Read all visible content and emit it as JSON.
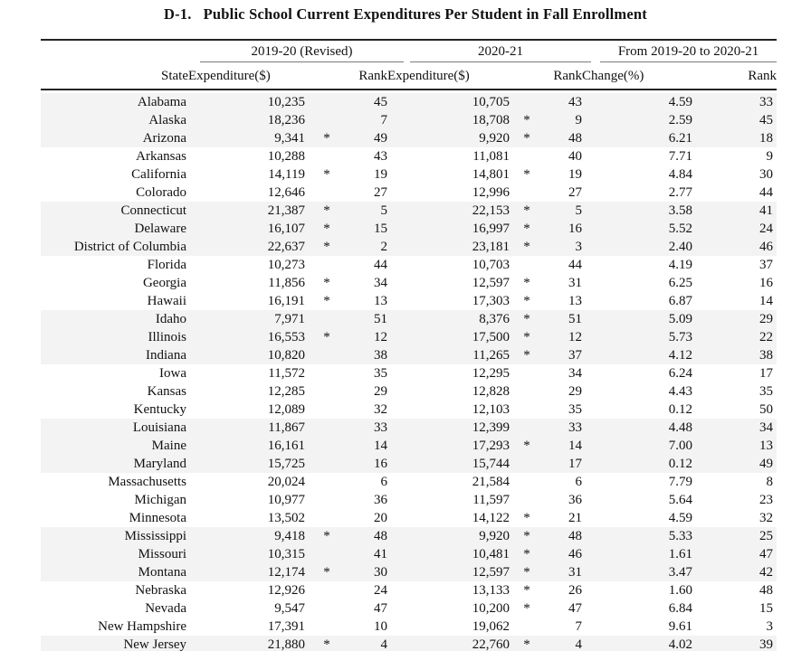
{
  "title": {
    "number": "D-1.",
    "text": "Public School Current Expenditures Per Student in Fall Enrollment"
  },
  "colors": {
    "row_shade": "#f3f3f3",
    "thick_rule": "#232323",
    "group_rule": "#7a7a7a",
    "text": "#111111"
  },
  "table": {
    "col_groups": [
      {
        "label": "2019-20 (Revised)"
      },
      {
        "label": "2020-21"
      },
      {
        "label": "From 2019-20 to 2020-21"
      }
    ],
    "sub_headers": {
      "state": "State",
      "expenditure": "Expenditure($)",
      "rank": "Rank",
      "change": "Change(%)"
    },
    "footnote_marker": "*",
    "rows": [
      {
        "state": "Alabama",
        "exp1": "10,235",
        "ast1": "",
        "rank1": "45",
        "exp2": "10,705",
        "ast2": "",
        "rank2": "43",
        "change": "4.59",
        "rank3": "33",
        "shaded": true
      },
      {
        "state": "Alaska",
        "exp1": "18,236",
        "ast1": "",
        "rank1": "7",
        "exp2": "18,708",
        "ast2": "*",
        "rank2": "9",
        "change": "2.59",
        "rank3": "45",
        "shaded": true
      },
      {
        "state": "Arizona",
        "exp1": "9,341",
        "ast1": "*",
        "rank1": "49",
        "exp2": "9,920",
        "ast2": "*",
        "rank2": "48",
        "change": "6.21",
        "rank3": "18",
        "shaded": true
      },
      {
        "state": "Arkansas",
        "exp1": "10,288",
        "ast1": "",
        "rank1": "43",
        "exp2": "11,081",
        "ast2": "",
        "rank2": "40",
        "change": "7.71",
        "rank3": "9",
        "shaded": false
      },
      {
        "state": "California",
        "exp1": "14,119",
        "ast1": "*",
        "rank1": "19",
        "exp2": "14,801",
        "ast2": "*",
        "rank2": "19",
        "change": "4.84",
        "rank3": "30",
        "shaded": false
      },
      {
        "state": "Colorado",
        "exp1": "12,646",
        "ast1": "",
        "rank1": "27",
        "exp2": "12,996",
        "ast2": "",
        "rank2": "27",
        "change": "2.77",
        "rank3": "44",
        "shaded": false
      },
      {
        "state": "Connecticut",
        "exp1": "21,387",
        "ast1": "*",
        "rank1": "5",
        "exp2": "22,153",
        "ast2": "*",
        "rank2": "5",
        "change": "3.58",
        "rank3": "41",
        "shaded": true
      },
      {
        "state": "Delaware",
        "exp1": "16,107",
        "ast1": "*",
        "rank1": "15",
        "exp2": "16,997",
        "ast2": "*",
        "rank2": "16",
        "change": "5.52",
        "rank3": "24",
        "shaded": true
      },
      {
        "state": "District of Columbia",
        "exp1": "22,637",
        "ast1": "*",
        "rank1": "2",
        "exp2": "23,181",
        "ast2": "*",
        "rank2": "3",
        "change": "2.40",
        "rank3": "46",
        "shaded": true
      },
      {
        "state": "Florida",
        "exp1": "10,273",
        "ast1": "",
        "rank1": "44",
        "exp2": "10,703",
        "ast2": "",
        "rank2": "44",
        "change": "4.19",
        "rank3": "37",
        "shaded": false
      },
      {
        "state": "Georgia",
        "exp1": "11,856",
        "ast1": "*",
        "rank1": "34",
        "exp2": "12,597",
        "ast2": "*",
        "rank2": "31",
        "change": "6.25",
        "rank3": "16",
        "shaded": false
      },
      {
        "state": "Hawaii",
        "exp1": "16,191",
        "ast1": "*",
        "rank1": "13",
        "exp2": "17,303",
        "ast2": "*",
        "rank2": "13",
        "change": "6.87",
        "rank3": "14",
        "shaded": false
      },
      {
        "state": "Idaho",
        "exp1": "7,971",
        "ast1": "",
        "rank1": "51",
        "exp2": "8,376",
        "ast2": "*",
        "rank2": "51",
        "change": "5.09",
        "rank3": "29",
        "shaded": true
      },
      {
        "state": "Illinois",
        "exp1": "16,553",
        "ast1": "*",
        "rank1": "12",
        "exp2": "17,500",
        "ast2": "*",
        "rank2": "12",
        "change": "5.73",
        "rank3": "22",
        "shaded": true
      },
      {
        "state": "Indiana",
        "exp1": "10,820",
        "ast1": "",
        "rank1": "38",
        "exp2": "11,265",
        "ast2": "*",
        "rank2": "37",
        "change": "4.12",
        "rank3": "38",
        "shaded": true
      },
      {
        "state": "Iowa",
        "exp1": "11,572",
        "ast1": "",
        "rank1": "35",
        "exp2": "12,295",
        "ast2": "",
        "rank2": "34",
        "change": "6.24",
        "rank3": "17",
        "shaded": false
      },
      {
        "state": "Kansas",
        "exp1": "12,285",
        "ast1": "",
        "rank1": "29",
        "exp2": "12,828",
        "ast2": "",
        "rank2": "29",
        "change": "4.43",
        "rank3": "35",
        "shaded": false
      },
      {
        "state": "Kentucky",
        "exp1": "12,089",
        "ast1": "",
        "rank1": "32",
        "exp2": "12,103",
        "ast2": "",
        "rank2": "35",
        "change": "0.12",
        "rank3": "50",
        "shaded": false
      },
      {
        "state": "Louisiana",
        "exp1": "11,867",
        "ast1": "",
        "rank1": "33",
        "exp2": "12,399",
        "ast2": "",
        "rank2": "33",
        "change": "4.48",
        "rank3": "34",
        "shaded": true
      },
      {
        "state": "Maine",
        "exp1": "16,161",
        "ast1": "",
        "rank1": "14",
        "exp2": "17,293",
        "ast2": "*",
        "rank2": "14",
        "change": "7.00",
        "rank3": "13",
        "shaded": true
      },
      {
        "state": "Maryland",
        "exp1": "15,725",
        "ast1": "",
        "rank1": "16",
        "exp2": "15,744",
        "ast2": "",
        "rank2": "17",
        "change": "0.12",
        "rank3": "49",
        "shaded": true
      },
      {
        "state": "Massachusetts",
        "exp1": "20,024",
        "ast1": "",
        "rank1": "6",
        "exp2": "21,584",
        "ast2": "",
        "rank2": "6",
        "change": "7.79",
        "rank3": "8",
        "shaded": false
      },
      {
        "state": "Michigan",
        "exp1": "10,977",
        "ast1": "",
        "rank1": "36",
        "exp2": "11,597",
        "ast2": "",
        "rank2": "36",
        "change": "5.64",
        "rank3": "23",
        "shaded": false
      },
      {
        "state": "Minnesota",
        "exp1": "13,502",
        "ast1": "",
        "rank1": "20",
        "exp2": "14,122",
        "ast2": "*",
        "rank2": "21",
        "change": "4.59",
        "rank3": "32",
        "shaded": false
      },
      {
        "state": "Mississippi",
        "exp1": "9,418",
        "ast1": "*",
        "rank1": "48",
        "exp2": "9,920",
        "ast2": "*",
        "rank2": "48",
        "change": "5.33",
        "rank3": "25",
        "shaded": true
      },
      {
        "state": "Missouri",
        "exp1": "10,315",
        "ast1": "",
        "rank1": "41",
        "exp2": "10,481",
        "ast2": "*",
        "rank2": "46",
        "change": "1.61",
        "rank3": "47",
        "shaded": true
      },
      {
        "state": "Montana",
        "exp1": "12,174",
        "ast1": "*",
        "rank1": "30",
        "exp2": "12,597",
        "ast2": "*",
        "rank2": "31",
        "change": "3.47",
        "rank3": "42",
        "shaded": true
      },
      {
        "state": "Nebraska",
        "exp1": "12,926",
        "ast1": "",
        "rank1": "24",
        "exp2": "13,133",
        "ast2": "*",
        "rank2": "26",
        "change": "1.60",
        "rank3": "48",
        "shaded": false
      },
      {
        "state": "Nevada",
        "exp1": "9,547",
        "ast1": "",
        "rank1": "47",
        "exp2": "10,200",
        "ast2": "*",
        "rank2": "47",
        "change": "6.84",
        "rank3": "15",
        "shaded": false
      },
      {
        "state": "New Hampshire",
        "exp1": "17,391",
        "ast1": "",
        "rank1": "10",
        "exp2": "19,062",
        "ast2": "",
        "rank2": "7",
        "change": "9.61",
        "rank3": "3",
        "shaded": false
      },
      {
        "state": "New Jersey",
        "exp1": "21,880",
        "ast1": "*",
        "rank1": "4",
        "exp2": "22,760",
        "ast2": "*",
        "rank2": "4",
        "change": "4.02",
        "rank3": "39",
        "shaded": true
      }
    ]
  }
}
